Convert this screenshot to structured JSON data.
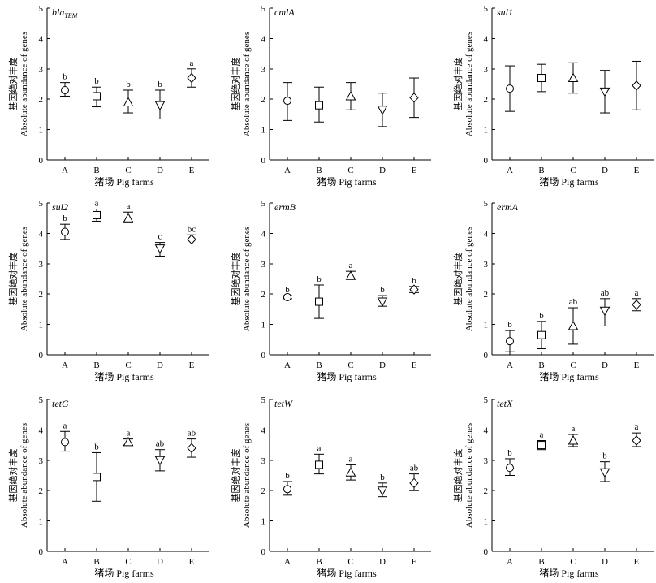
{
  "chart_data": [
    {
      "type": "scatter",
      "title_main": "bla",
      "title_sub": "TEM",
      "xlabel": "猪场 Pig farms",
      "ylabel_cn": "基因绝对丰度",
      "ylabel_en": "Absolute abundance of genes",
      "ylim": [
        0,
        5
      ],
      "yticks": [
        "0",
        "1",
        "2",
        "3",
        "4",
        "5"
      ],
      "categories": [
        "A",
        "B",
        "C",
        "D",
        "E"
      ],
      "markers": [
        "circle",
        "square",
        "triangle-up",
        "triangle-down",
        "diamond"
      ],
      "values": [
        2.3,
        2.1,
        1.9,
        1.8,
        2.7
      ],
      "err_low": [
        2.1,
        1.75,
        1.55,
        1.35,
        2.4
      ],
      "err_high": [
        2.55,
        2.4,
        2.3,
        2.3,
        3.0
      ],
      "labels": [
        "b",
        "b",
        "b",
        "b",
        "a"
      ]
    },
    {
      "type": "scatter",
      "title_main": "cmlA",
      "title_sub": "",
      "xlabel": "猪场 Pig farms",
      "ylabel_cn": "基因绝对丰度",
      "ylabel_en": "Absolute abundance of genes",
      "ylim": [
        0,
        5
      ],
      "yticks": [
        "0",
        "1",
        "2",
        "3",
        "4",
        "5"
      ],
      "categories": [
        "A",
        "B",
        "C",
        "D",
        "E"
      ],
      "markers": [
        "circle",
        "square",
        "triangle-up",
        "triangle-down",
        "diamond"
      ],
      "values": [
        1.95,
        1.8,
        2.1,
        1.65,
        2.05
      ],
      "err_low": [
        1.3,
        1.25,
        1.65,
        1.1,
        1.4
      ],
      "err_high": [
        2.55,
        2.4,
        2.55,
        2.2,
        2.7
      ],
      "labels": [
        "",
        "",
        "",
        "",
        ""
      ]
    },
    {
      "type": "scatter",
      "title_main": "sul1",
      "title_sub": "",
      "xlabel": "猪场 Pig farms",
      "ylabel_cn": "基因绝对丰度",
      "ylabel_en": "Absolute abundance of genes",
      "ylim": [
        0,
        5
      ],
      "yticks": [
        "0",
        "1",
        "2",
        "3",
        "4",
        "5"
      ],
      "categories": [
        "A",
        "B",
        "C",
        "D",
        "E"
      ],
      "markers": [
        "circle",
        "square",
        "triangle-up",
        "triangle-down",
        "diamond"
      ],
      "values": [
        2.35,
        2.7,
        2.7,
        2.25,
        2.45
      ],
      "err_low": [
        1.6,
        2.25,
        2.2,
        1.55,
        1.65
      ],
      "err_high": [
        3.1,
        3.15,
        3.2,
        2.95,
        3.25
      ],
      "labels": [
        "",
        "",
        "",
        "",
        ""
      ]
    },
    {
      "type": "scatter",
      "title_main": "sul2",
      "title_sub": "",
      "xlabel": "猪场 Pig farms",
      "ylabel_cn": "基因绝对丰度",
      "ylabel_en": "Absolute abundance of genes",
      "ylim": [
        0,
        5
      ],
      "yticks": [
        "0",
        "1",
        "2",
        "3",
        "4",
        "5"
      ],
      "categories": [
        "A",
        "B",
        "C",
        "D",
        "E"
      ],
      "markers": [
        "circle",
        "square",
        "triangle-up",
        "triangle-down",
        "diamond"
      ],
      "values": [
        4.05,
        4.6,
        4.5,
        3.5,
        3.8
      ],
      "err_low": [
        3.8,
        4.4,
        4.35,
        3.25,
        3.65
      ],
      "err_high": [
        4.3,
        4.8,
        4.7,
        3.7,
        3.95
      ],
      "labels": [
        "b",
        "a",
        "a",
        "c",
        "bc"
      ]
    },
    {
      "type": "scatter",
      "title_main": "ermB",
      "title_sub": "",
      "xlabel": "猪场 Pig farms",
      "ylabel_cn": "基因绝对丰度",
      "ylabel_en": "Absolute abundance of genes",
      "ylim": [
        0,
        5
      ],
      "yticks": [
        "0",
        "1",
        "2",
        "3",
        "4",
        "5"
      ],
      "categories": [
        "A",
        "B",
        "C",
        "D",
        "E"
      ],
      "markers": [
        "circle",
        "square",
        "triangle-up",
        "triangle-down",
        "diamond"
      ],
      "values": [
        1.9,
        1.75,
        2.6,
        1.75,
        2.15
      ],
      "err_low": [
        1.85,
        1.2,
        2.5,
        1.6,
        2.05
      ],
      "err_high": [
        1.95,
        2.3,
        2.75,
        1.95,
        2.25
      ],
      "labels": [
        "b",
        "b",
        "a",
        "b",
        "b"
      ]
    },
    {
      "type": "scatter",
      "title_main": "ermA",
      "title_sub": "",
      "xlabel": "猪场 Pig farms",
      "ylabel_cn": "基因绝对丰度",
      "ylabel_en": "Absolute abundance of genes",
      "ylim": [
        0,
        5
      ],
      "yticks": [
        "0",
        "1",
        "2",
        "3",
        "4",
        "5"
      ],
      "categories": [
        "A",
        "B",
        "C",
        "D",
        "E"
      ],
      "markers": [
        "circle",
        "square",
        "triangle-up",
        "triangle-down",
        "diamond"
      ],
      "values": [
        0.45,
        0.65,
        0.95,
        1.45,
        1.65
      ],
      "err_low": [
        0.1,
        0.2,
        0.35,
        0.95,
        1.45
      ],
      "err_high": [
        0.8,
        1.1,
        1.55,
        1.85,
        1.85
      ],
      "labels": [
        "b",
        "b",
        "ab",
        "ab",
        "a"
      ]
    },
    {
      "type": "scatter",
      "title_main": "tetG",
      "title_sub": "",
      "xlabel": "猪场 Pig farms",
      "ylabel_cn": "基因绝对丰度",
      "ylabel_en": "Absolute abundance of genes",
      "ylim": [
        0,
        5
      ],
      "yticks": [
        "0",
        "1",
        "2",
        "3",
        "4",
        "5"
      ],
      "categories": [
        "A",
        "B",
        "C",
        "D",
        "E"
      ],
      "markers": [
        "circle",
        "square",
        "triangle-up",
        "triangle-down",
        "diamond"
      ],
      "values": [
        3.6,
        2.45,
        3.6,
        3.0,
        3.4
      ],
      "err_low": [
        3.3,
        1.65,
        3.5,
        2.65,
        3.1
      ],
      "err_high": [
        3.95,
        3.25,
        3.7,
        3.35,
        3.7
      ],
      "labels": [
        "a",
        "b",
        "a",
        "ab",
        "ab"
      ]
    },
    {
      "type": "scatter",
      "title_main": "tetW",
      "title_sub": "",
      "xlabel": "猪场 Pig farms",
      "ylabel_cn": "基因绝对丰度",
      "ylabel_en": "Absolute abundance of genes",
      "ylim": [
        0,
        5
      ],
      "yticks": [
        "0",
        "1",
        "2",
        "3",
        "4",
        "5"
      ],
      "categories": [
        "A",
        "B",
        "C",
        "D",
        "E"
      ],
      "markers": [
        "circle",
        "square",
        "triangle-up",
        "triangle-down",
        "diamond"
      ],
      "values": [
        2.05,
        2.85,
        2.6,
        2.0,
        2.25
      ],
      "err_low": [
        1.85,
        2.55,
        2.35,
        1.8,
        2.0
      ],
      "err_high": [
        2.3,
        3.2,
        2.85,
        2.25,
        2.55
      ],
      "labels": [
        "b",
        "a",
        "a",
        "b",
        "ab"
      ]
    },
    {
      "type": "scatter",
      "title_main": "tetX",
      "title_sub": "",
      "xlabel": "猪场 Pig farms",
      "ylabel_cn": "基因绝对丰度",
      "ylabel_en": "Absolute abundance of genes",
      "ylim": [
        0,
        5
      ],
      "yticks": [
        "0",
        "1",
        "2",
        "3",
        "4",
        "5"
      ],
      "categories": [
        "A",
        "B",
        "C",
        "D",
        "E"
      ],
      "markers": [
        "circle",
        "square",
        "triangle-up",
        "triangle-down",
        "diamond"
      ],
      "values": [
        2.75,
        3.5,
        3.65,
        2.6,
        3.65
      ],
      "err_low": [
        2.5,
        3.35,
        3.45,
        2.3,
        3.45
      ],
      "err_high": [
        3.05,
        3.65,
        3.85,
        2.95,
        3.9
      ],
      "labels": [
        "b",
        "a",
        "a",
        "b",
        "a"
      ]
    }
  ]
}
